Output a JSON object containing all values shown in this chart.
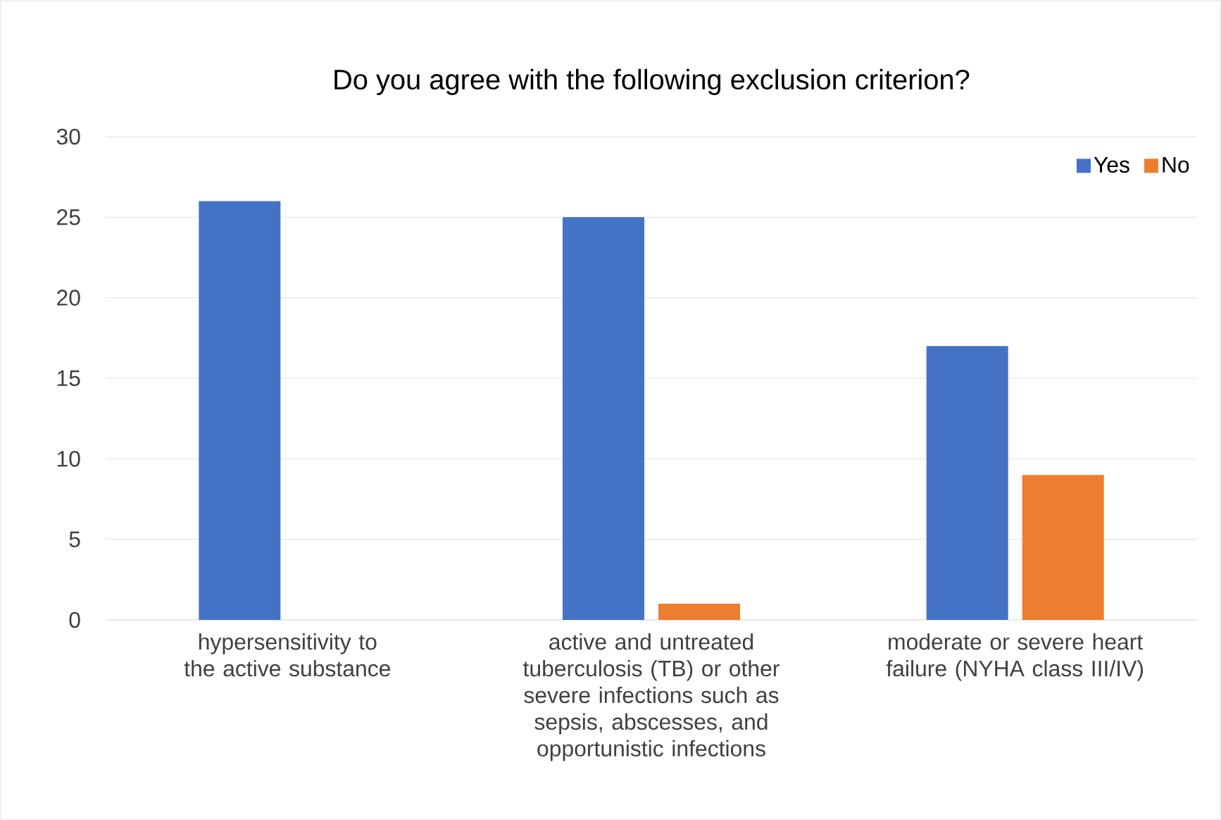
{
  "chart_data": {
    "type": "bar",
    "title": "Do you agree with the following exclusion criterion?",
    "categories": [
      "hypersensitivity to the active substance",
      "active and untreated tuberculosis (TB) or other severe infections such as sepsis, abscesses, and opportunistic infections",
      "moderate or severe heart failure (NYHA class III/IV)"
    ],
    "series": [
      {
        "name": "Yes",
        "color": "#4472c4",
        "values": [
          26,
          25,
          17
        ]
      },
      {
        "name": "No",
        "color": "#ed7d31",
        "values": [
          0,
          1,
          9
        ]
      }
    ],
    "ylim": [
      0,
      30
    ],
    "yticks": [
      0,
      5,
      10,
      15,
      20,
      25,
      30
    ],
    "grid": "y",
    "legend": "top right"
  }
}
